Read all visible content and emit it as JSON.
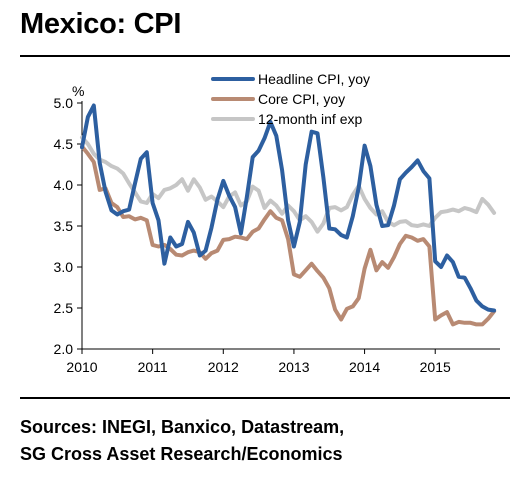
{
  "title": "Mexico: CPI",
  "sources": {
    "line1": "Sources: INEGI, Banxico, Datastream,",
    "line2": "SG Cross Asset Research/Economics"
  },
  "chart_data": {
    "type": "line",
    "title": "Mexico: CPI",
    "ylabel": "%",
    "xlabel": "",
    "ylim": [
      2.0,
      5.0
    ],
    "yticks": [
      "2.0",
      "2.5",
      "3.0",
      "3.5",
      "4.0",
      "4.5",
      "5.0"
    ],
    "xlim": [
      2010.0,
      2015.917
    ],
    "xticks": [
      {
        "label": "2010",
        "x": 2010
      },
      {
        "label": "2011",
        "x": 2011
      },
      {
        "label": "2012",
        "x": 2012
      },
      {
        "label": "2013",
        "x": 2013
      },
      {
        "label": "2014",
        "x": 2014
      },
      {
        "label": "2015",
        "x": 2015
      }
    ],
    "grid": false,
    "legend_position": "top",
    "series": [
      {
        "name": "Headline CPI, yoy",
        "color": "#2d5fa0",
        "width": 4,
        "points": [
          [
            2010.0,
            4.46
          ],
          [
            2010.083,
            4.83
          ],
          [
            2010.167,
            4.97
          ],
          [
            2010.25,
            4.27
          ],
          [
            2010.333,
            3.92
          ],
          [
            2010.417,
            3.69
          ],
          [
            2010.5,
            3.64
          ],
          [
            2010.583,
            3.68
          ],
          [
            2010.667,
            3.7
          ],
          [
            2010.75,
            4.02
          ],
          [
            2010.833,
            4.32
          ],
          [
            2010.917,
            4.4
          ],
          [
            2011.0,
            3.78
          ],
          [
            2011.083,
            3.57
          ],
          [
            2011.167,
            3.04
          ],
          [
            2011.25,
            3.36
          ],
          [
            2011.333,
            3.25
          ],
          [
            2011.417,
            3.28
          ],
          [
            2011.5,
            3.55
          ],
          [
            2011.583,
            3.42
          ],
          [
            2011.667,
            3.14
          ],
          [
            2011.75,
            3.2
          ],
          [
            2011.833,
            3.48
          ],
          [
            2011.917,
            3.82
          ],
          [
            2012.0,
            4.05
          ],
          [
            2012.083,
            3.87
          ],
          [
            2012.167,
            3.73
          ],
          [
            2012.25,
            3.41
          ],
          [
            2012.333,
            3.85
          ],
          [
            2012.417,
            4.34
          ],
          [
            2012.5,
            4.42
          ],
          [
            2012.583,
            4.57
          ],
          [
            2012.667,
            4.77
          ],
          [
            2012.75,
            4.6
          ],
          [
            2012.833,
            4.18
          ],
          [
            2012.917,
            3.57
          ],
          [
            2013.0,
            3.25
          ],
          [
            2013.083,
            3.55
          ],
          [
            2013.167,
            4.25
          ],
          [
            2013.25,
            4.65
          ],
          [
            2013.333,
            4.63
          ],
          [
            2013.417,
            4.09
          ],
          [
            2013.5,
            3.47
          ],
          [
            2013.583,
            3.46
          ],
          [
            2013.667,
            3.39
          ],
          [
            2013.75,
            3.36
          ],
          [
            2013.833,
            3.62
          ],
          [
            2013.917,
            3.97
          ],
          [
            2014.0,
            4.48
          ],
          [
            2014.083,
            4.23
          ],
          [
            2014.167,
            3.76
          ],
          [
            2014.25,
            3.5
          ],
          [
            2014.333,
            3.51
          ],
          [
            2014.417,
            3.75
          ],
          [
            2014.5,
            4.07
          ],
          [
            2014.583,
            4.15
          ],
          [
            2014.667,
            4.22
          ],
          [
            2014.75,
            4.3
          ],
          [
            2014.833,
            4.17
          ],
          [
            2014.917,
            4.08
          ],
          [
            2015.0,
            3.07
          ],
          [
            2015.083,
            3.0
          ],
          [
            2015.167,
            3.14
          ],
          [
            2015.25,
            3.06
          ],
          [
            2015.333,
            2.88
          ],
          [
            2015.417,
            2.87
          ],
          [
            2015.5,
            2.74
          ],
          [
            2015.583,
            2.59
          ],
          [
            2015.667,
            2.52
          ],
          [
            2015.75,
            2.48
          ],
          [
            2015.833,
            2.47
          ]
        ]
      },
      {
        "name": "Core CPI, yoy",
        "color": "#b88a73",
        "width": 4,
        "points": [
          [
            2010.0,
            4.47
          ],
          [
            2010.083,
            4.38
          ],
          [
            2010.167,
            4.28
          ],
          [
            2010.25,
            3.94
          ],
          [
            2010.333,
            3.96
          ],
          [
            2010.417,
            3.78
          ],
          [
            2010.5,
            3.73
          ],
          [
            2010.583,
            3.61
          ],
          [
            2010.667,
            3.62
          ],
          [
            2010.75,
            3.58
          ],
          [
            2010.833,
            3.6
          ],
          [
            2010.917,
            3.57
          ],
          [
            2011.0,
            3.27
          ],
          [
            2011.083,
            3.25
          ],
          [
            2011.167,
            3.27
          ],
          [
            2011.25,
            3.22
          ],
          [
            2011.333,
            3.15
          ],
          [
            2011.417,
            3.14
          ],
          [
            2011.5,
            3.18
          ],
          [
            2011.583,
            3.2
          ],
          [
            2011.667,
            3.18
          ],
          [
            2011.75,
            3.1
          ],
          [
            2011.833,
            3.17
          ],
          [
            2011.917,
            3.2
          ],
          [
            2012.0,
            3.33
          ],
          [
            2012.083,
            3.34
          ],
          [
            2012.167,
            3.37
          ],
          [
            2012.25,
            3.36
          ],
          [
            2012.333,
            3.34
          ],
          [
            2012.417,
            3.43
          ],
          [
            2012.5,
            3.47
          ],
          [
            2012.583,
            3.58
          ],
          [
            2012.667,
            3.68
          ],
          [
            2012.75,
            3.6
          ],
          [
            2012.833,
            3.57
          ],
          [
            2012.917,
            3.34
          ],
          [
            2013.0,
            2.91
          ],
          [
            2013.083,
            2.88
          ],
          [
            2013.167,
            2.96
          ],
          [
            2013.25,
            3.04
          ],
          [
            2013.333,
            2.95
          ],
          [
            2013.417,
            2.87
          ],
          [
            2013.5,
            2.74
          ],
          [
            2013.583,
            2.48
          ],
          [
            2013.667,
            2.36
          ],
          [
            2013.75,
            2.49
          ],
          [
            2013.833,
            2.52
          ],
          [
            2013.917,
            2.62
          ],
          [
            2014.0,
            2.98
          ],
          [
            2014.083,
            3.21
          ],
          [
            2014.167,
            2.96
          ],
          [
            2014.25,
            3.06
          ],
          [
            2014.333,
            2.99
          ],
          [
            2014.417,
            3.12
          ],
          [
            2014.5,
            3.28
          ],
          [
            2014.583,
            3.38
          ],
          [
            2014.667,
            3.36
          ],
          [
            2014.75,
            3.32
          ],
          [
            2014.833,
            3.34
          ],
          [
            2014.917,
            3.25
          ],
          [
            2015.0,
            2.36
          ],
          [
            2015.083,
            2.41
          ],
          [
            2015.167,
            2.45
          ],
          [
            2015.25,
            2.3
          ],
          [
            2015.333,
            2.33
          ],
          [
            2015.417,
            2.32
          ],
          [
            2015.5,
            2.32
          ],
          [
            2015.583,
            2.3
          ],
          [
            2015.667,
            2.3
          ],
          [
            2015.75,
            2.37
          ],
          [
            2015.833,
            2.46
          ]
        ]
      },
      {
        "name": "12-month inf exp",
        "color": "#c6c6c6",
        "width": 4,
        "points": [
          [
            2010.0,
            4.58
          ],
          [
            2010.083,
            4.5
          ],
          [
            2010.167,
            4.38
          ],
          [
            2010.25,
            4.31
          ],
          [
            2010.333,
            4.28
          ],
          [
            2010.417,
            4.23
          ],
          [
            2010.5,
            4.2
          ],
          [
            2010.583,
            4.14
          ],
          [
            2010.667,
            4.02
          ],
          [
            2010.75,
            3.91
          ],
          [
            2010.833,
            3.8
          ],
          [
            2010.917,
            3.78
          ],
          [
            2011.0,
            3.89
          ],
          [
            2011.083,
            3.84
          ],
          [
            2011.167,
            3.94
          ],
          [
            2011.25,
            3.96
          ],
          [
            2011.333,
            4.0
          ],
          [
            2011.417,
            4.07
          ],
          [
            2011.5,
            3.93
          ],
          [
            2011.583,
            4.07
          ],
          [
            2011.667,
            3.97
          ],
          [
            2011.75,
            3.82
          ],
          [
            2011.833,
            3.86
          ],
          [
            2011.917,
            3.8
          ],
          [
            2012.0,
            3.73
          ],
          [
            2012.083,
            3.86
          ],
          [
            2012.167,
            3.91
          ],
          [
            2012.25,
            3.75
          ],
          [
            2012.333,
            3.8
          ],
          [
            2012.417,
            3.98
          ],
          [
            2012.5,
            3.93
          ],
          [
            2012.583,
            3.72
          ],
          [
            2012.667,
            3.81
          ],
          [
            2012.75,
            3.75
          ],
          [
            2012.833,
            3.65
          ],
          [
            2012.917,
            3.75
          ],
          [
            2013.0,
            3.68
          ],
          [
            2013.083,
            3.57
          ],
          [
            2013.167,
            3.62
          ],
          [
            2013.25,
            3.55
          ],
          [
            2013.333,
            3.43
          ],
          [
            2013.417,
            3.53
          ],
          [
            2013.5,
            3.72
          ],
          [
            2013.583,
            3.73
          ],
          [
            2013.667,
            3.69
          ],
          [
            2013.75,
            3.73
          ],
          [
            2013.833,
            3.88
          ],
          [
            2013.917,
            3.99
          ],
          [
            2014.0,
            3.83
          ],
          [
            2014.083,
            3.72
          ],
          [
            2014.167,
            3.64
          ],
          [
            2014.25,
            3.68
          ],
          [
            2014.333,
            3.55
          ],
          [
            2014.417,
            3.51
          ],
          [
            2014.5,
            3.55
          ],
          [
            2014.583,
            3.56
          ],
          [
            2014.667,
            3.51
          ],
          [
            2014.75,
            3.5
          ],
          [
            2014.833,
            3.52
          ],
          [
            2014.917,
            3.5
          ],
          [
            2015.0,
            3.6
          ],
          [
            2015.083,
            3.67
          ],
          [
            2015.167,
            3.68
          ],
          [
            2015.25,
            3.7
          ],
          [
            2015.333,
            3.68
          ],
          [
            2015.417,
            3.72
          ],
          [
            2015.5,
            3.7
          ],
          [
            2015.583,
            3.67
          ],
          [
            2015.667,
            3.83
          ],
          [
            2015.75,
            3.76
          ],
          [
            2015.833,
            3.66
          ]
        ]
      }
    ]
  }
}
